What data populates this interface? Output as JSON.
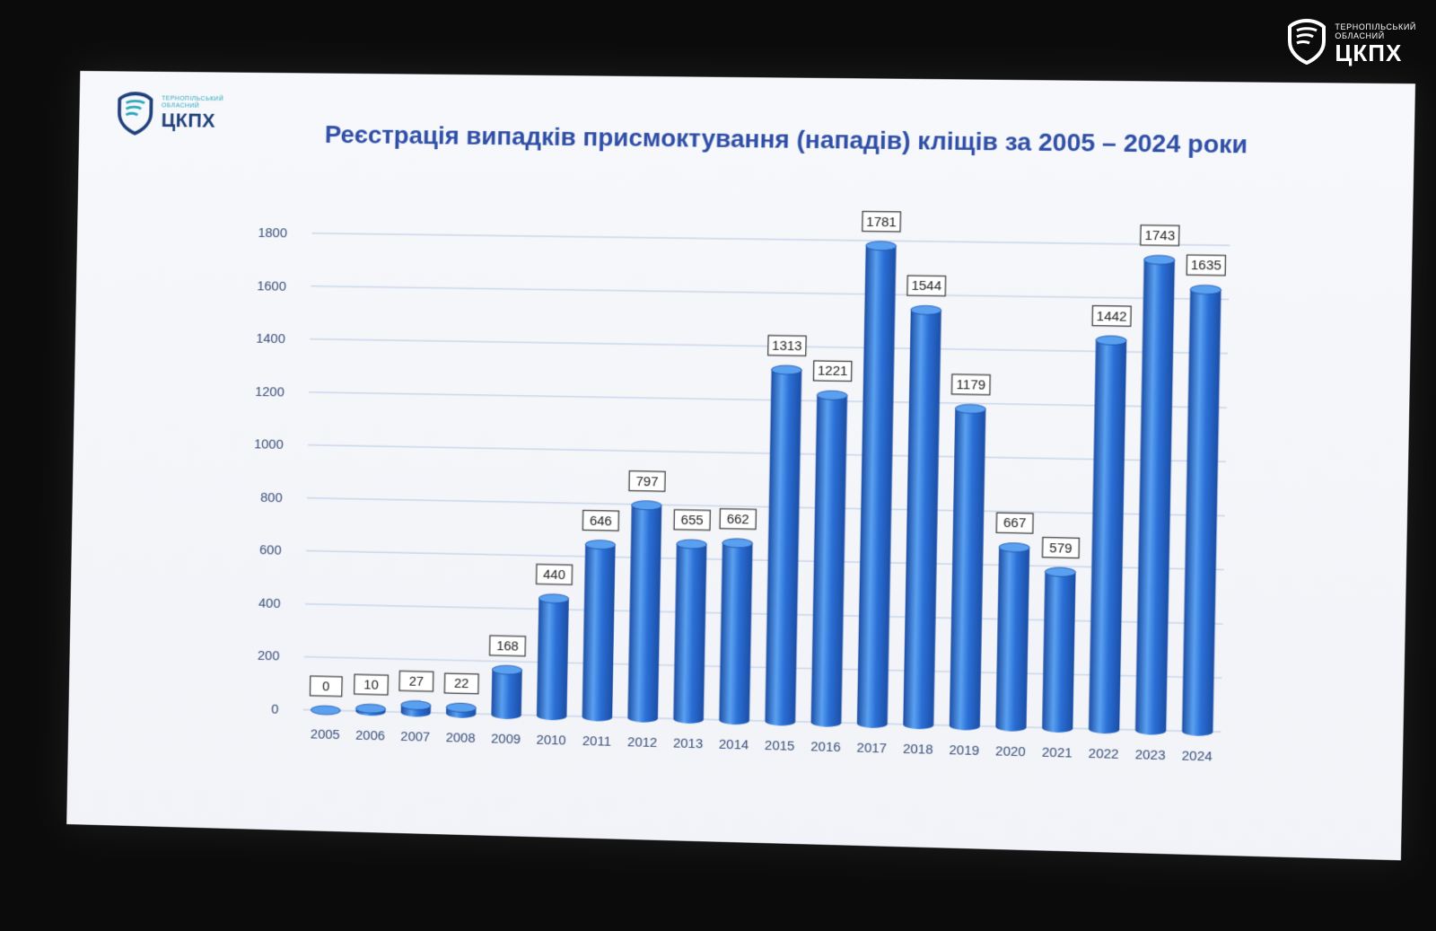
{
  "corner_logo": {
    "line1": "ТЕРНОПІЛЬСЬКИЙ",
    "line2": "ОБЛАСНИЙ",
    "name": "ЦКПХ"
  },
  "slide_logo": {
    "line1": "ТЕРНОПІЛЬСЬКИЙ",
    "line2": "ОБЛАСНИЙ",
    "name": "ЦКПХ"
  },
  "colors": {
    "bar": "#2a6fd6",
    "bar_dark": "#1c4ea5",
    "bar_light": "#5aa0f0",
    "title": "#2f4ea6",
    "axis_text": "#3a4f7a",
    "grid": "#c9d6ea"
  },
  "chart_data": {
    "type": "bar",
    "title": "Реєстрація випадків присмоктування (нападів) кліщів за 2005 – 2024 роки",
    "xlabel": "",
    "ylabel": "",
    "ylim": [
      0,
      1800
    ],
    "yticks": [
      0,
      200,
      400,
      600,
      800,
      1000,
      1200,
      1400,
      1600,
      1800
    ],
    "grid": true,
    "categories": [
      "2005",
      "2006",
      "2007",
      "2008",
      "2009",
      "2010",
      "2011",
      "2012",
      "2013",
      "2014",
      "2015",
      "2016",
      "2017",
      "2018",
      "2019",
      "2020",
      "2021",
      "2022",
      "2023",
      "2024"
    ],
    "values": [
      0,
      10,
      27,
      22,
      168,
      440,
      646,
      797,
      655,
      662,
      1313,
      1221,
      1781,
      1544,
      1179,
      667,
      579,
      1442,
      1743,
      1635
    ]
  }
}
